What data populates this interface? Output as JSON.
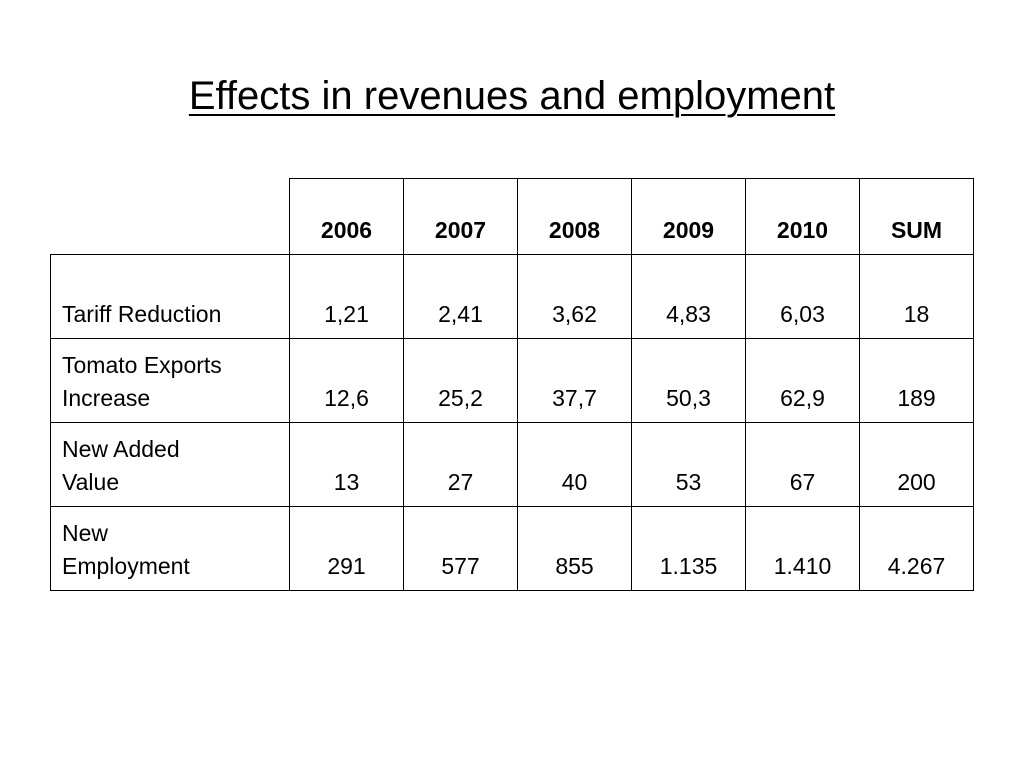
{
  "slide": {
    "title": "Effects in revenues and employment"
  },
  "table": {
    "columns": [
      "2006",
      "2007",
      "2008",
      "2009",
      "2010",
      "SUM"
    ],
    "rows": [
      {
        "label_line1": "Tariff Reduction",
        "label_line2": "",
        "values": [
          "1,21",
          "2,41",
          "3,62",
          "4,83",
          "6,03",
          "18"
        ]
      },
      {
        "label_line1": "Tomato Exports",
        "label_line2": "Increase",
        "values": [
          "12,6",
          "25,2",
          "37,7",
          "50,3",
          "62,9",
          "189"
        ]
      },
      {
        "label_line1": "New Added",
        "label_line2": "Value",
        "values": [
          "13",
          "27",
          "40",
          "53",
          "67",
          "200"
        ]
      },
      {
        "label_line1": "New",
        "label_line2": "Employment",
        "values": [
          "291",
          "577",
          "855",
          "1.135",
          "1.410",
          "4.267"
        ]
      }
    ]
  }
}
